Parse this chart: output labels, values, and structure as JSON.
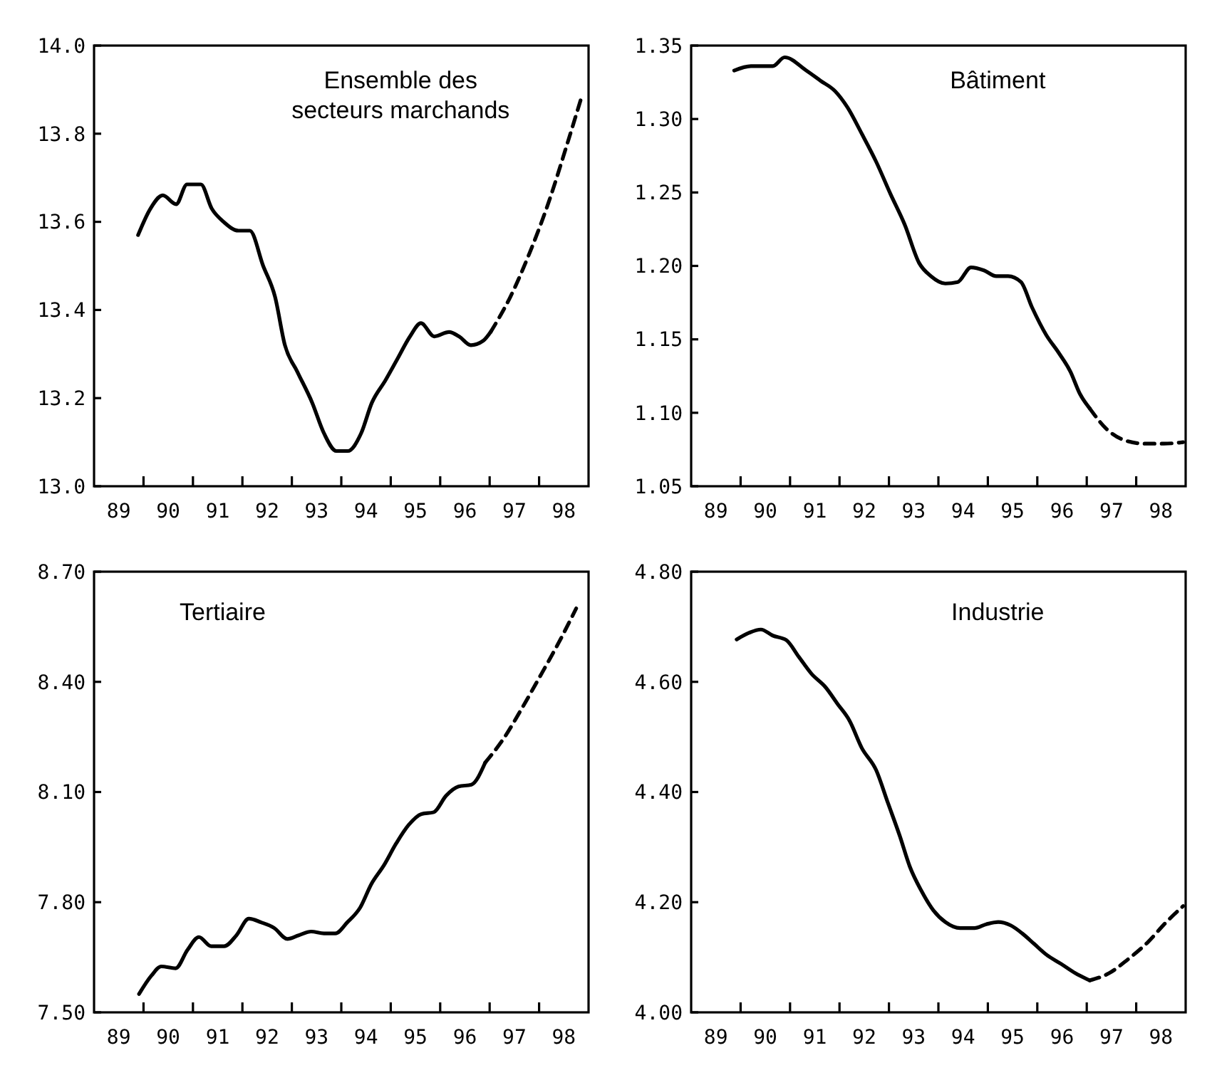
{
  "chart_data": [
    {
      "type": "line",
      "title": "Ensemble des secteurs marchands",
      "xlim": [
        89,
        99
      ],
      "xticks": [
        {
          "value": 89.5,
          "label": "89"
        },
        {
          "value": 90,
          "label": null
        },
        {
          "value": 90.5,
          "label": "90"
        },
        {
          "value": 91,
          "label": null
        },
        {
          "value": 91.5,
          "label": "91"
        },
        {
          "value": 92,
          "label": null
        },
        {
          "value": 92.5,
          "label": "92"
        },
        {
          "value": 93,
          "label": null
        },
        {
          "value": 93.5,
          "label": "93"
        },
        {
          "value": 94,
          "label": null
        },
        {
          "value": 94.5,
          "label": "94"
        },
        {
          "value": 95,
          "label": null
        },
        {
          "value": 95.5,
          "label": "95"
        },
        {
          "value": 96,
          "label": null
        },
        {
          "value": 96.5,
          "label": "96"
        },
        {
          "value": 97,
          "label": null
        },
        {
          "value": 97.5,
          "label": "97"
        },
        {
          "value": 98,
          "label": null
        },
        {
          "value": 98.5,
          "label": "98"
        }
      ],
      "ylim": [
        13.0,
        14.0
      ],
      "yticks": [
        {
          "value": 13,
          "label": "13.0"
        },
        13.2,
        13.4,
        13.6,
        13.8,
        {
          "value": 14,
          "label": "14.0"
        }
      ],
      "series": [
        {
          "color": "#000000",
          "line_style": "solid",
          "x": [
            89.89,
            90.14,
            90.39,
            90.66,
            90.88,
            91.16,
            91.38,
            91.62,
            91.92,
            92.15,
            92.42,
            92.66,
            92.86,
            93.11,
            93.41,
            93.65,
            93.9,
            94.13,
            94.4,
            94.62,
            94.89,
            95.14,
            95.39,
            95.61,
            95.88,
            96.18,
            96.38,
            96.62,
            96.87,
            97.02
          ],
          "values": [
            13.57,
            13.63,
            13.66,
            13.64,
            13.685,
            13.685,
            13.63,
            13.6,
            13.58,
            13.58,
            13.5,
            13.43,
            13.32,
            13.26,
            13.19,
            13.12,
            13.08,
            13.08,
            13.12,
            13.19,
            13.24,
            13.29,
            13.34,
            13.37,
            13.34,
            13.35,
            13.34,
            13.32,
            13.33,
            13.35
          ]
        },
        {
          "color": "#000000",
          "line_style": "dashed",
          "x": [
            97.02,
            97.42,
            97.81,
            98.21,
            98.55,
            98.85
          ],
          "values": [
            13.35,
            13.43,
            13.53,
            13.65,
            13.77,
            13.88
          ]
        }
      ]
    },
    {
      "type": "line",
      "title": "Bâtiment",
      "xlim": [
        89,
        99
      ],
      "xticks": [
        {
          "value": 89.5,
          "label": "89"
        },
        {
          "value": 90,
          "label": null
        },
        {
          "value": 90.5,
          "label": "90"
        },
        {
          "value": 91,
          "label": null
        },
        {
          "value": 91.5,
          "label": "91"
        },
        {
          "value": 92,
          "label": null
        },
        {
          "value": 92.5,
          "label": "92"
        },
        {
          "value": 93,
          "label": null
        },
        {
          "value": 93.5,
          "label": "93"
        },
        {
          "value": 94,
          "label": null
        },
        {
          "value": 94.5,
          "label": "94"
        },
        {
          "value": 95,
          "label": null
        },
        {
          "value": 95.5,
          "label": "95"
        },
        {
          "value": 96,
          "label": null
        },
        {
          "value": 96.5,
          "label": "96"
        },
        {
          "value": 97,
          "label": null
        },
        {
          "value": 97.5,
          "label": "97"
        },
        {
          "value": 98,
          "label": null
        },
        {
          "value": 98.5,
          "label": "98"
        }
      ],
      "ylim": [
        1.05,
        1.35
      ],
      "yticks": [
        1.05,
        {
          "value": 1.1,
          "label": "1.10"
        },
        1.15,
        {
          "value": 1.2,
          "label": "1.20"
        },
        1.25,
        {
          "value": 1.3,
          "label": "1.30"
        },
        1.35
      ],
      "series": [
        {
          "color": "#000000",
          "line_style": "solid",
          "x": [
            89.87,
            90.21,
            90.65,
            90.89,
            91.33,
            91.62,
            91.91,
            92.16,
            92.45,
            92.74,
            93.03,
            93.32,
            93.61,
            93.85,
            94.14,
            94.39,
            94.66,
            94.92,
            95.17,
            95.41,
            95.67,
            95.89,
            96.18,
            96.43,
            96.67,
            96.86,
            97.06
          ],
          "values": [
            1.333,
            1.336,
            1.336,
            1.342,
            1.333,
            1.326,
            1.319,
            1.308,
            1.29,
            1.271,
            1.249,
            1.228,
            1.202,
            1.193,
            1.188,
            1.189,
            1.199,
            1.197,
            1.193,
            1.193,
            1.189,
            1.172,
            1.153,
            1.141,
            1.128,
            1.113,
            1.103
          ]
        },
        {
          "color": "#000000",
          "line_style": "dashed",
          "x": [
            97.06,
            97.4,
            97.79,
            98.17,
            98.56,
            98.95
          ],
          "values": [
            1.103,
            1.089,
            1.081,
            1.079,
            1.079,
            1.08
          ]
        }
      ]
    },
    {
      "type": "line",
      "title": "Tertiaire",
      "xlim": [
        89,
        99
      ],
      "xticks": [
        {
          "value": 89.5,
          "label": "89"
        },
        {
          "value": 90,
          "label": null
        },
        {
          "value": 90.5,
          "label": "90"
        },
        {
          "value": 91,
          "label": null
        },
        {
          "value": 91.5,
          "label": "91"
        },
        {
          "value": 92,
          "label": null
        },
        {
          "value": 92.5,
          "label": "92"
        },
        {
          "value": 93,
          "label": null
        },
        {
          "value": 93.5,
          "label": "93"
        },
        {
          "value": 94,
          "label": null
        },
        {
          "value": 94.5,
          "label": "94"
        },
        {
          "value": 95,
          "label": null
        },
        {
          "value": 95.5,
          "label": "95"
        },
        {
          "value": 96,
          "label": null
        },
        {
          "value": 96.5,
          "label": "96"
        },
        {
          "value": 97,
          "label": null
        },
        {
          "value": 97.5,
          "label": "97"
        },
        {
          "value": 98,
          "label": null
        },
        {
          "value": 98.5,
          "label": "98"
        }
      ],
      "ylim": [
        7.5,
        8.7
      ],
      "yticks": [
        {
          "value": 7.5,
          "label": "7.50"
        },
        {
          "value": 7.8,
          "label": "7.80"
        },
        {
          "value": 8.1,
          "label": "8.10"
        },
        {
          "value": 8.4,
          "label": "8.40"
        },
        {
          "value": 8.7,
          "label": "8.70"
        }
      ],
      "series": [
        {
          "color": "#000000",
          "line_style": "solid",
          "x": [
            89.91,
            90.16,
            90.36,
            90.65,
            90.89,
            91.12,
            91.37,
            91.63,
            91.88,
            92.13,
            92.38,
            92.64,
            92.91,
            93.14,
            93.39,
            93.65,
            93.88,
            94.12,
            94.38,
            94.61,
            94.86,
            95.11,
            95.36,
            95.62,
            95.87,
            96.12,
            96.37,
            96.63,
            96.91
          ],
          "values": [
            7.55,
            7.6,
            7.625,
            7.62,
            7.67,
            7.705,
            7.68,
            7.68,
            7.71,
            7.755,
            7.745,
            7.73,
            7.7,
            7.71,
            7.72,
            7.715,
            7.715,
            7.745,
            7.785,
            7.85,
            7.9,
            7.96,
            8.01,
            8.04,
            8.045,
            8.09,
            8.115,
            8.12,
            8.18
          ]
        },
        {
          "color": "#000000",
          "line_style": "dashed",
          "x": [
            96.91,
            97.28,
            97.64,
            98.04,
            98.39,
            98.75
          ],
          "values": [
            8.18,
            8.245,
            8.325,
            8.42,
            8.505,
            8.6
          ]
        }
      ]
    },
    {
      "type": "line",
      "title": "Industrie",
      "xlim": [
        89,
        99
      ],
      "xticks": [
        {
          "value": 89.5,
          "label": "89"
        },
        {
          "value": 90,
          "label": null
        },
        {
          "value": 90.5,
          "label": "90"
        },
        {
          "value": 91,
          "label": null
        },
        {
          "value": 91.5,
          "label": "91"
        },
        {
          "value": 92,
          "label": null
        },
        {
          "value": 92.5,
          "label": "92"
        },
        {
          "value": 93,
          "label": null
        },
        {
          "value": 93.5,
          "label": "93"
        },
        {
          "value": 94,
          "label": null
        },
        {
          "value": 94.5,
          "label": "94"
        },
        {
          "value": 95,
          "label": null
        },
        {
          "value": 95.5,
          "label": "95"
        },
        {
          "value": 96,
          "label": null
        },
        {
          "value": 96.5,
          "label": "96"
        },
        {
          "value": 97,
          "label": null
        },
        {
          "value": 97.5,
          "label": "97"
        },
        {
          "value": 98,
          "label": null
        },
        {
          "value": 98.5,
          "label": "98"
        }
      ],
      "ylim": [
        4.0,
        4.8
      ],
      "yticks": [
        {
          "value": 4,
          "label": "4.00"
        },
        {
          "value": 4.2,
          "label": "4.20"
        },
        {
          "value": 4.4,
          "label": "4.40"
        },
        {
          "value": 4.6,
          "label": "4.60"
        },
        {
          "value": 4.8,
          "label": "4.80"
        }
      ],
      "series": [
        {
          "color": "#000000",
          "line_style": "solid",
          "x": [
            89.92,
            90.17,
            90.41,
            90.65,
            90.92,
            91.18,
            91.43,
            91.72,
            91.96,
            92.2,
            92.45,
            92.74,
            92.98,
            93.22,
            93.42,
            93.66,
            93.9,
            94.14,
            94.44,
            94.73,
            94.97,
            95.21,
            95.46,
            95.7,
            95.94,
            96.18,
            96.48,
            96.77,
            97.06
          ],
          "values": [
            4.677,
            4.689,
            4.695,
            4.684,
            4.676,
            4.645,
            4.615,
            4.59,
            4.56,
            4.53,
            4.48,
            4.44,
            4.38,
            4.32,
            4.265,
            4.22,
            4.185,
            4.164,
            4.153,
            4.153,
            4.16,
            4.164,
            4.158,
            4.143,
            4.124,
            4.105,
            4.088,
            4.071,
            4.058
          ]
        },
        {
          "color": "#000000",
          "line_style": "dashed",
          "x": [
            97.06,
            97.45,
            97.83,
            98.22,
            98.61,
            98.95
          ],
          "values": [
            4.058,
            4.071,
            4.096,
            4.126,
            4.164,
            4.193
          ]
        }
      ]
    }
  ]
}
